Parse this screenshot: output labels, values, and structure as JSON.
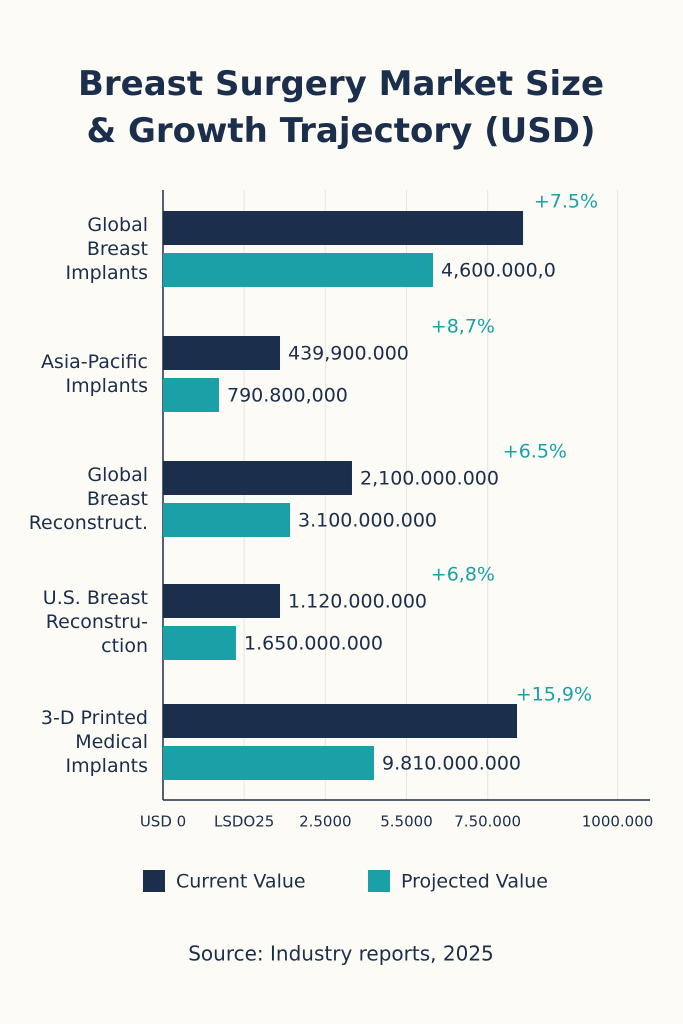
{
  "chart_data": {
    "type": "hbar",
    "title": "Breast Surgery Market Size\n& Growth Trajectory (USD)",
    "categories": [
      "Global\nBreast\nImplants",
      "Asia-Pacific\nImplants",
      "Global\nBreast\nReconstruct.",
      "U.S. Breast\nReconstru-\nction",
      "3-D Printed\nMedical\nImplants"
    ],
    "series": [
      {
        "name": "Current Value",
        "color": "#1b2e4b",
        "values": [
          11090,
          3604,
          5821,
          3604,
          10904
        ],
        "bar_labels": [
          null,
          "439,900.000",
          "2,100.000.000",
          "1.120.000.000",
          null
        ]
      },
      {
        "name": "Projected Value",
        "color": "#1aa1a8",
        "values": [
          8316,
          1725,
          3912,
          2248,
          6499
        ],
        "bar_labels": [
          "4,600.000,0",
          "790.800,000",
          "3.100.000.000",
          "1.650.000.000",
          "9.810.000.000"
        ]
      }
    ],
    "growth_labels": [
      "+7.5%",
      "+8,7%",
      "+6.5%",
      "+6,8%",
      "+15,9%"
    ],
    "growth_color": "#1aa1a8",
    "xlim": [
      0,
      15000
    ],
    "xticks": [
      {
        "value": 0,
        "label": "USD 0"
      },
      {
        "value": 2500,
        "label": "LSDO25"
      },
      {
        "value": 5000,
        "label": "2.5000"
      },
      {
        "value": 7500,
        "label": "5.5000"
      },
      {
        "value": 10000,
        "label": "7.50.000"
      },
      {
        "value": 14000,
        "label": "1000.000"
      }
    ],
    "grid": true,
    "legend": "bottom",
    "source": "Source: Industry reports, 2025"
  }
}
